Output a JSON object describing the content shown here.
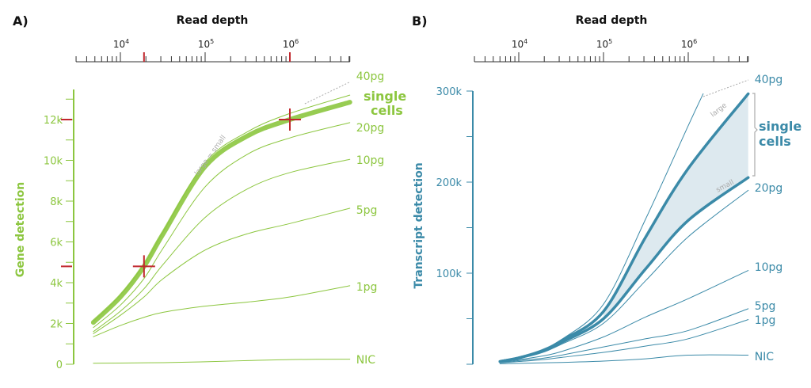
{
  "colors": {
    "green": "#8cc63f",
    "blue": "#3b8aa8",
    "red": "#c1272d",
    "shade": "#dde9ef",
    "gray": "#aaaaaa"
  },
  "chart_data": [
    {
      "panel": "A)",
      "type": "line",
      "xlabel": "Read depth",
      "ylabel": "Gene detection",
      "x_scale": "log",
      "xlim": [
        3000,
        5100000
      ],
      "x_ticks": [
        "10^4",
        "10^5",
        "10^6"
      ],
      "ylim": [
        0,
        13500
      ],
      "y_ticks": [
        "0",
        "2k",
        "4k",
        "6k",
        "8k",
        "10k",
        "12k"
      ],
      "y_tick_values": [
        0,
        2000,
        4000,
        6000,
        8000,
        10000,
        12000
      ],
      "annotation": "large = small",
      "group_label": "single cells",
      "highlight_x": [
        19000,
        1000000
      ],
      "highlight_y": [
        4800,
        12000
      ],
      "series": [
        {
          "name": "40pg",
          "x": [
            4800,
            10000,
            19000,
            32000,
            100000,
            316000,
            1000000,
            5100000
          ],
          "y": [
            2100,
            3400,
            4900,
            6500,
            9900,
            11400,
            12300,
            13200
          ]
        },
        {
          "name": "single cells",
          "thick": true,
          "x": [
            4800,
            10000,
            19000,
            32000,
            100000,
            316000,
            1000000,
            5100000
          ],
          "y": [
            2050,
            3300,
            4800,
            6400,
            9700,
            11200,
            12000,
            12850
          ]
        },
        {
          "name": "20pg",
          "x": [
            4800,
            10000,
            19000,
            32000,
            100000,
            316000,
            1000000,
            5100000
          ],
          "y": [
            1800,
            2900,
            4200,
            5700,
            8700,
            10300,
            11100,
            11850
          ]
        },
        {
          "name": "10pg",
          "x": [
            4800,
            10000,
            19000,
            32000,
            100000,
            316000,
            1000000,
            5100000
          ],
          "y": [
            1600,
            2600,
            3700,
            4900,
            7200,
            8600,
            9400,
            10050
          ]
        },
        {
          "name": "5pg",
          "x": [
            4800,
            10000,
            19000,
            32000,
            100000,
            316000,
            1000000,
            5100000
          ],
          "y": [
            1500,
            2400,
            3300,
            4200,
            5600,
            6400,
            6900,
            7650
          ]
        },
        {
          "name": "1pg",
          "x": [
            4800,
            10000,
            19000,
            32000,
            100000,
            316000,
            1000000,
            5100000
          ],
          "y": [
            1350,
            1900,
            2300,
            2550,
            2850,
            3050,
            3300,
            3850
          ]
        },
        {
          "name": "NIC",
          "x": [
            4800,
            10000,
            32000,
            100000,
            316000,
            1000000,
            5100000
          ],
          "y": [
            50,
            60,
            80,
            120,
            180,
            230,
            250
          ]
        }
      ]
    },
    {
      "panel": "B)",
      "type": "line",
      "xlabel": "Read depth",
      "ylabel": "Transcript detection",
      "x_scale": "log",
      "xlim": [
        3000,
        5100000
      ],
      "x_ticks": [
        "10^4",
        "10^5",
        "10^6"
      ],
      "ylim": [
        0,
        300000
      ],
      "y_ticks": [
        "100k",
        "200k",
        "300k"
      ],
      "y_tick_values": [
        100000,
        200000,
        300000
      ],
      "group_label": "single cells",
      "band_labels": {
        "upper": "large",
        "lower": "small"
      },
      "series": [
        {
          "name": "40pg",
          "x": [
            6000,
            10000,
            19000,
            32000,
            100000,
            316000,
            1000000,
            1500000
          ],
          "y": [
            3000,
            7000,
            15000,
            27000,
            66000,
            160000,
            262000,
            297000
          ]
        },
        {
          "name": "large",
          "thick": true,
          "x": [
            6000,
            10000,
            19000,
            32000,
            100000,
            316000,
            1000000,
            5100000
          ],
          "y": [
            3000,
            7000,
            15000,
            26000,
            58000,
            140000,
            215000,
            297000
          ]
        },
        {
          "name": "small",
          "thick": true,
          "x": [
            6000,
            10000,
            19000,
            32000,
            100000,
            316000,
            1000000,
            5100000
          ],
          "y": [
            3000,
            7000,
            14000,
            24000,
            50000,
            105000,
            158000,
            205000
          ]
        },
        {
          "name": "20pg",
          "x": [
            6000,
            10000,
            19000,
            32000,
            100000,
            316000,
            1000000,
            5100000
          ],
          "y": [
            3000,
            6500,
            13000,
            22000,
            45000,
            92000,
            140000,
            191000
          ]
        },
        {
          "name": "10pg",
          "x": [
            6000,
            10000,
            19000,
            32000,
            100000,
            316000,
            1000000,
            5100000
          ],
          "y": [
            2500,
            5000,
            9000,
            14000,
            30000,
            52000,
            72000,
            103000
          ]
        },
        {
          "name": "5pg",
          "x": [
            6000,
            10000,
            19000,
            32000,
            100000,
            316000,
            1000000,
            5100000
          ],
          "y": [
            2000,
            4000,
            6500,
            10000,
            19000,
            28000,
            37000,
            61000
          ]
        },
        {
          "name": "1pg",
          "x": [
            6000,
            10000,
            19000,
            32000,
            100000,
            316000,
            1000000,
            5100000
          ],
          "y": [
            1500,
            3000,
            5000,
            7500,
            13000,
            20000,
            28000,
            49000
          ]
        },
        {
          "name": "NIC",
          "x": [
            6000,
            10000,
            32000,
            100000,
            316000,
            1000000,
            5100000
          ],
          "y": [
            500,
            1000,
            2000,
            3500,
            6000,
            10000,
            10000
          ]
        }
      ]
    }
  ]
}
